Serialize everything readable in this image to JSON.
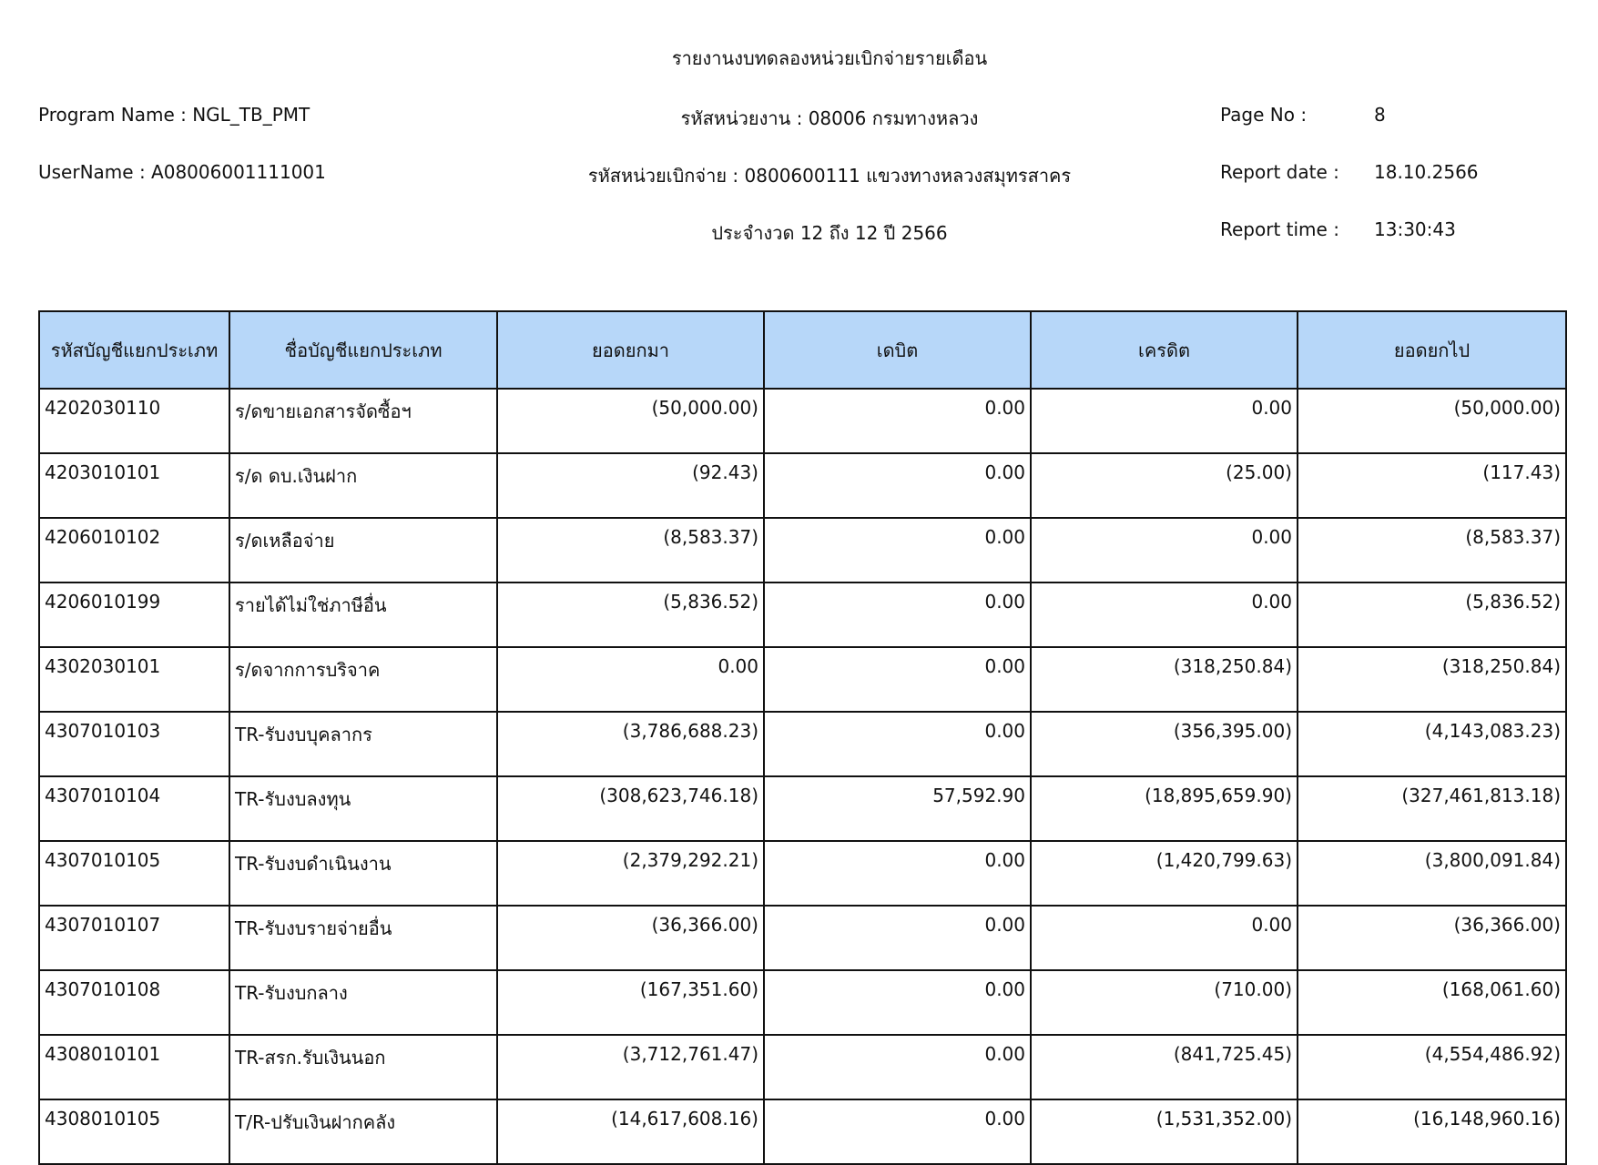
{
  "header": {
    "title": "รายงานงบทดลองหน่วยเบิกจ่ายรายเดือน",
    "program_name": "Program Name : NGL_TB_PMT",
    "username": "UserName : A08006001111001",
    "agency": "รหัสหน่วยงาน : 08006 กรมทางหลวง",
    "disbursing_unit": "รหัสหน่วยเบิกจ่าย : 0800600111 แขวงทางหลวงสมุทรสาคร",
    "period": "ประจำงวด 12 ถึง 12 ปี 2566",
    "page_no_label": "Page No :",
    "page_no": "8",
    "report_date_label": "Report date :",
    "report_date": "18.10.2566",
    "report_time_label": "Report time :",
    "report_time": "13:30:43"
  },
  "table": {
    "columns": [
      "รหัสบัญชีแยกประเภท",
      "ชื่อบัญชีแยกประเภท",
      "ยอดยกมา",
      "เดบิต",
      "เครดิต",
      "ยอดยกไป"
    ],
    "header_color": "#b7d7f9",
    "rows": [
      [
        "4202030110",
        "ร/ดขายเอกสารจัดซื้อฯ",
        "(50,000.00)",
        "0.00",
        "0.00",
        "(50,000.00)"
      ],
      [
        "4203010101",
        "ร/ด ดบ.เงินฝาก",
        "(92.43)",
        "0.00",
        "(25.00)",
        "(117.43)"
      ],
      [
        "4206010102",
        "ร/ดเหลือจ่าย",
        "(8,583.37)",
        "0.00",
        "0.00",
        "(8,583.37)"
      ],
      [
        "4206010199",
        "รายได้ไม่ใช่ภาษีอื่น",
        "(5,836.52)",
        "0.00",
        "0.00",
        "(5,836.52)"
      ],
      [
        "4302030101",
        "ร/ดจากการบริจาค",
        "0.00",
        "0.00",
        "(318,250.84)",
        "(318,250.84)"
      ],
      [
        "4307010103",
        "TR-รับงบบุคลากร",
        "(3,786,688.23)",
        "0.00",
        "(356,395.00)",
        "(4,143,083.23)"
      ],
      [
        "4307010104",
        "TR-รับงบลงทุน",
        "(308,623,746.18)",
        "57,592.90",
        "(18,895,659.90)",
        "(327,461,813.18)"
      ],
      [
        "4307010105",
        "TR-รับงบดำเนินงาน",
        "(2,379,292.21)",
        "0.00",
        "(1,420,799.63)",
        "(3,800,091.84)"
      ],
      [
        "4307010107",
        "TR-รับงบรายจ่ายอื่น",
        "(36,366.00)",
        "0.00",
        "0.00",
        "(36,366.00)"
      ],
      [
        "4307010108",
        "TR-รับงบกลาง",
        "(167,351.60)",
        "0.00",
        "(710.00)",
        "(168,061.60)"
      ],
      [
        "4308010101",
        "TR-สรก.รับเงินนอก",
        "(3,712,761.47)",
        "0.00",
        "(841,725.45)",
        "(4,554,486.92)"
      ],
      [
        "4308010105",
        "T/R-ปรับเงินฝากคลัง",
        "(14,617,608.16)",
        "0.00",
        "(1,531,352.00)",
        "(16,148,960.16)"
      ]
    ]
  }
}
